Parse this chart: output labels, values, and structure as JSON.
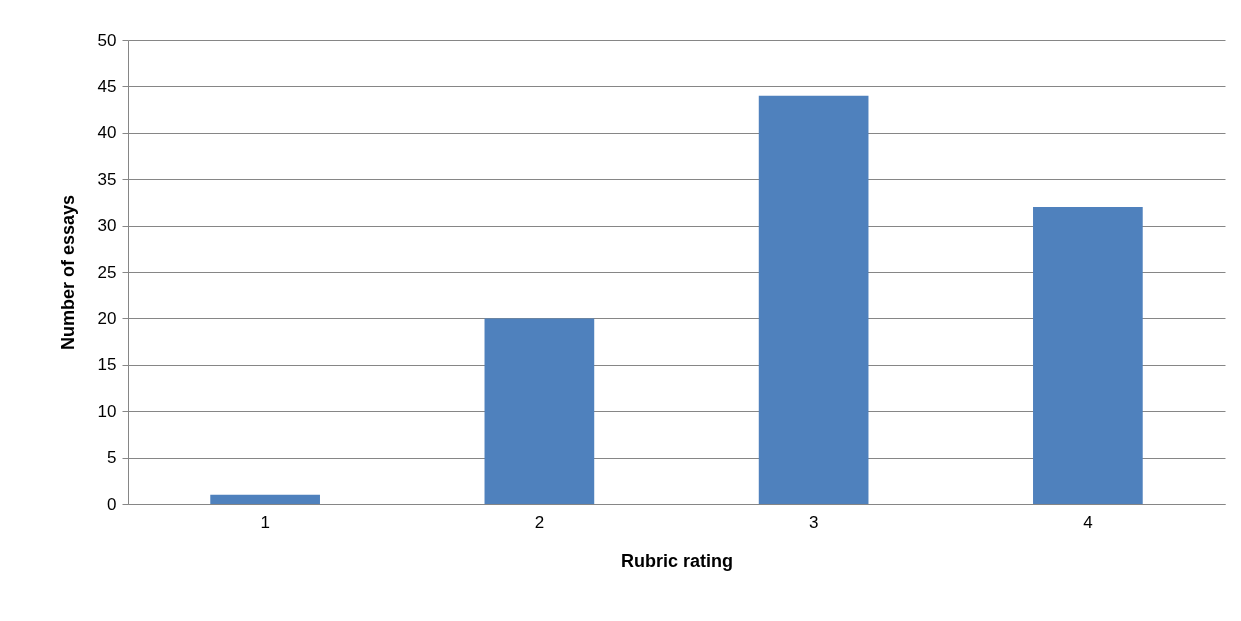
{
  "chart_data": {
    "type": "bar",
    "xlabel": "Rubric rating",
    "ylabel": "Number of essays",
    "categories": [
      "1",
      "2",
      "3",
      "4"
    ],
    "values": [
      1,
      20,
      44,
      32
    ],
    "color": "#4f81bd",
    "ylim": [
      0,
      50
    ],
    "yticks": [
      0,
      5,
      10,
      15,
      20,
      25,
      30,
      35,
      40,
      45,
      50
    ],
    "grid": "y"
  }
}
